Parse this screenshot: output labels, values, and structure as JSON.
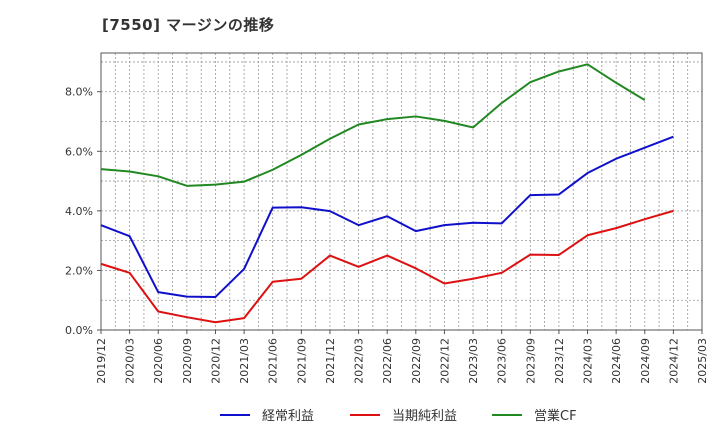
{
  "chart_data": {
    "type": "line",
    "title": "[7550]  マージンの推移",
    "xlabel": "",
    "ylabel": "",
    "ylim": [
      0,
      9.3
    ],
    "yticks": [
      0,
      2,
      4,
      6,
      8
    ],
    "ytick_labels": [
      "0.0%",
      "2.0%",
      "4.0%",
      "6.0%",
      "8.0%"
    ],
    "grid": true,
    "legend_position": "bottom",
    "categories": [
      "2019/12",
      "2020/03",
      "2020/06",
      "2020/09",
      "2020/12",
      "2021/03",
      "2021/06",
      "2021/09",
      "2021/12",
      "2022/03",
      "2022/06",
      "2022/09",
      "2022/12",
      "2023/03",
      "2023/06",
      "2023/09",
      "2023/12",
      "2024/03",
      "2024/06",
      "2024/09",
      "2024/12",
      "2025/03"
    ],
    "series": [
      {
        "name": "経常利益",
        "color": "#1010cc",
        "values": [
          3.52,
          3.15,
          1.27,
          1.12,
          1.11,
          2.05,
          4.11,
          4.12,
          3.99,
          3.52,
          3.82,
          3.32,
          3.52,
          3.6,
          3.58,
          4.53,
          4.55,
          5.27,
          5.75,
          6.12,
          6.49,
          null
        ]
      },
      {
        "name": "当期純利益",
        "color": "#dd1111",
        "values": [
          2.22,
          1.92,
          0.62,
          0.43,
          0.26,
          0.4,
          1.62,
          1.72,
          2.5,
          2.12,
          2.5,
          2.07,
          1.56,
          1.72,
          1.92,
          2.53,
          2.52,
          3.18,
          3.42,
          3.72,
          4.0,
          null
        ]
      },
      {
        "name": "営業CF",
        "color": "#228822",
        "values": [
          5.4,
          5.32,
          5.16,
          4.84,
          4.88,
          4.98,
          5.38,
          5.88,
          6.42,
          6.9,
          7.08,
          7.17,
          7.02,
          6.8,
          7.62,
          8.32,
          8.68,
          8.92,
          8.3,
          7.72,
          null,
          null
        ]
      }
    ]
  }
}
